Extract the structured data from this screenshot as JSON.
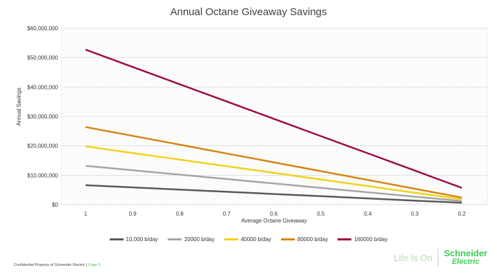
{
  "chart_data": {
    "type": "line",
    "title": "Annual Octane Giveaway Savings",
    "xlabel": "Average Octane Giveaway",
    "ylabel": "Annual Savings",
    "categories": [
      "1",
      "0.9",
      "0.8",
      "0.7",
      "0.6",
      "0.5",
      "0.4",
      "0.3",
      "0.2"
    ],
    "x": [
      1,
      0.9,
      0.8,
      0.7,
      0.6,
      0.5,
      0.4,
      0.3,
      0.2
    ],
    "y_ticks": [
      "$0",
      "$10,000,000",
      "$20,000,000",
      "$30,000,000",
      "$40,000,000",
      "$50,000,000",
      "$60,000,000"
    ],
    "ylim": [
      0,
      60000000
    ],
    "legend_position": "bottom",
    "series": [
      {
        "name": "10,000 b/day",
        "color": "#595959",
        "values": [
          6600000,
          5850000,
          5100000,
          4350000,
          3600000,
          2850000,
          2100000,
          1350000,
          600000
        ]
      },
      {
        "name": "20000 b/day",
        "color": "#a5a5a5",
        "values": [
          13200000,
          11700000,
          10200000,
          8700000,
          7200000,
          5700000,
          4200000,
          2700000,
          1200000
        ]
      },
      {
        "name": "40000 b/day",
        "color": "#f2d01a",
        "values": [
          19800000,
          17550000,
          15300000,
          13050000,
          10800000,
          8550000,
          6300000,
          4050000,
          1800000
        ]
      },
      {
        "name": "80000 b/day",
        "color": "#d4840f",
        "values": [
          26400000,
          23400000,
          20400000,
          17400000,
          14400000,
          11400000,
          8400000,
          5400000,
          2400000
        ]
      },
      {
        "name": "160000 b/day",
        "color": "#9b0a45",
        "values": [
          52700000,
          46825000,
          40950000,
          35075000,
          29200000,
          23325000,
          17450000,
          11575000,
          5700000
        ]
      }
    ]
  },
  "footer": {
    "confidential": "Confidential Property of Schneider Electric |",
    "page": "Page 5"
  },
  "brand": {
    "tagline": "Life Is On",
    "logo_line1": "Schneider",
    "logo_line2": "Electric"
  }
}
